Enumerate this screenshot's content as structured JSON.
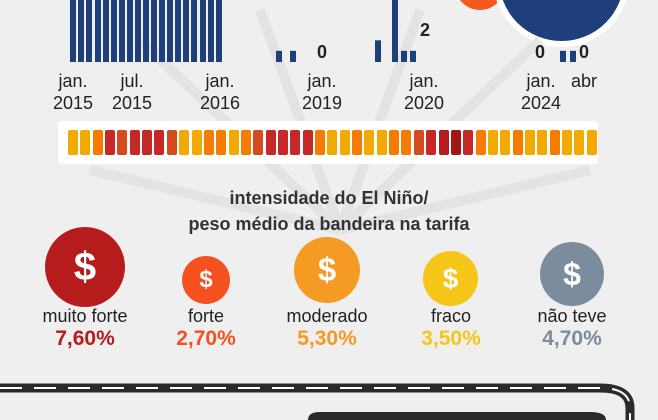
{
  "chart_data": {
    "type": "bar",
    "x_ticks": [
      {
        "month": "jan.",
        "year": "2015"
      },
      {
        "month": "jul.",
        "year": "2015"
      },
      {
        "month": "jan.",
        "year": "2016"
      },
      {
        "month": "jan.",
        "year": "2019"
      },
      {
        "month": "jan.",
        "year": "2020"
      },
      {
        "month": "jan.",
        "year": "2024"
      },
      {
        "month": "abr",
        "year": ""
      }
    ],
    "visible_labels": [
      {
        "text": "0"
      },
      {
        "text": "2"
      },
      {
        "text": "0"
      },
      {
        "text": "0"
      }
    ],
    "bars": [
      {
        "value": 1,
        "color": "#1f3f7a"
      },
      {
        "value": 1,
        "color": "#1f3f7a"
      },
      {
        "value": 1,
        "color": "#1f3f7a"
      },
      {
        "value": 1,
        "color": "#1f3f7a"
      },
      {
        "value": 1,
        "color": "#1f3f7a"
      },
      {
        "value": 1,
        "color": "#1f3f7a"
      },
      {
        "value": 1,
        "color": "#1f3f7a"
      },
      {
        "value": 1,
        "color": "#1f3f7a"
      },
      {
        "value": 1,
        "color": "#1f3f7a"
      },
      {
        "value": 1,
        "color": "#1f3f7a"
      },
      {
        "value": 1,
        "color": "#1f3f7a"
      },
      {
        "value": 1,
        "color": "#1f3f7a"
      },
      {
        "value": 1,
        "color": "#1f3f7a"
      },
      {
        "value": 1,
        "color": "#1f3f7a"
      },
      {
        "value": 1,
        "color": "#1f3f7a"
      },
      {
        "value": 1,
        "color": "#1f3f7a"
      },
      {
        "value": 1,
        "color": "#1f3f7a"
      },
      {
        "value": 1,
        "color": "#1f3f7a"
      },
      {
        "value": 1,
        "color": "#1f3f7a"
      },
      {
        "value": 0.18,
        "color": "#1f3f7a"
      },
      {
        "value": 0,
        "color": "#1f3f7a"
      },
      {
        "value": 0.18,
        "color": "#1f3f7a"
      },
      {
        "value": 0.35,
        "color": "#1f3f7a"
      },
      {
        "value": 1,
        "color": "#1f3f7a"
      },
      {
        "value": 0.18,
        "color": "#1f3f7a"
      },
      {
        "value": 0.18,
        "color": "#1f3f7a"
      },
      {
        "value": 0.18,
        "color": "#1f3f7a"
      },
      {
        "value": 0.18,
        "color": "#1f3f7a"
      }
    ],
    "intensity_strip": [
      "#f2a900",
      "#f2a900",
      "#f57c00",
      "#c62828",
      "#d64a1f",
      "#c62828",
      "#c62828",
      "#c62828",
      "#d64a1f",
      "#f2a900",
      "#f2a900",
      "#f57c00",
      "#f57c00",
      "#f2a900",
      "#f57c00",
      "#d64a1f",
      "#c62828",
      "#c62828",
      "#c62828",
      "#c62828",
      "#f57c00",
      "#f2a900",
      "#f2a900",
      "#f57c00",
      "#f2a900",
      "#f2a900",
      "#f57c00",
      "#f57c00",
      "#d64a1f",
      "#c62828",
      "#b71c1c",
      "#a31515",
      "#c62828",
      "#f57c00",
      "#f2a900",
      "#f2a900",
      "#f57c00",
      "#f2a900",
      "#f2a900",
      "#f57c00",
      "#f2a900",
      "#f2a900",
      "#f2a900"
    ]
  },
  "legend": {
    "title_line1": "intensidade do El Niño/",
    "title_line2": "peso médio da bandeira na tarifa",
    "symbol": "$",
    "items": [
      {
        "label": "muito forte",
        "value": "7,60%",
        "color": "#b71c1c"
      },
      {
        "label": "forte",
        "value": "2,70%",
        "color": "#f4511e"
      },
      {
        "label": "moderado",
        "value": "5,30%",
        "color": "#f59a23"
      },
      {
        "label": "fraco",
        "value": "3,50%",
        "color": "#f5c518"
      },
      {
        "label": "não teve",
        "value": "4,70%",
        "color": "#7b8c9e"
      }
    ]
  }
}
